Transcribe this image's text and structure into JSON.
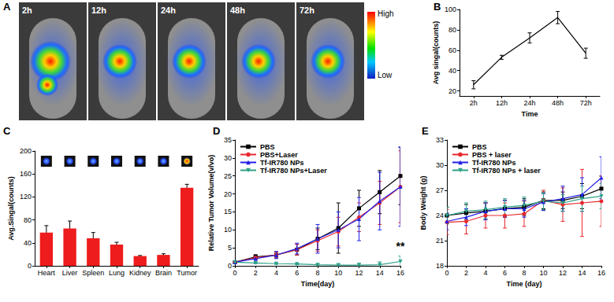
{
  "chart_data": [
    {
      "type": "image",
      "panel": "A",
      "frames": [
        "2h",
        "12h",
        "24h",
        "48h",
        "72h"
      ],
      "scale_labels": [
        "High",
        "Low"
      ]
    },
    {
      "type": "line",
      "panel": "B",
      "x_label": "Time",
      "y_label": "Avg singal(counts)",
      "categories": [
        "2h",
        "12h",
        "24h",
        "48h",
        "72h"
      ],
      "values": [
        26,
        53,
        72,
        92,
        57
      ],
      "errors": [
        4,
        2,
        5,
        6,
        5
      ],
      "color": "#000000",
      "ylim": [
        15,
        100
      ],
      "yticks": [
        20,
        40,
        60,
        80,
        100
      ]
    },
    {
      "type": "bar",
      "panel": "C",
      "y_label": "Avg.Singal(counts)",
      "categories": [
        "Heart",
        "Liver",
        "Spleen",
        "Lung",
        "Kidney",
        "Brain",
        "Tumor"
      ],
      "values": [
        58,
        65,
        48,
        37,
        17,
        19,
        136
      ],
      "errors": [
        12,
        13,
        10,
        4,
        1,
        2,
        6
      ],
      "color": "#ee1c1c",
      "ylim": [
        0,
        200
      ],
      "yticks": [
        0,
        40,
        80,
        120,
        160,
        200
      ]
    },
    {
      "type": "line",
      "panel": "D",
      "x_label": "Time(day)",
      "y_label": "Relative Tumor Volume(v/vo)",
      "x": [
        0,
        2,
        4,
        6,
        8,
        10,
        12,
        14,
        16
      ],
      "series": [
        {
          "name": "PBS",
          "color": "#000000",
          "marker": "square",
          "values": [
            1,
            2.5,
            3,
            4.5,
            7.5,
            10.5,
            16,
            20.5,
            25
          ],
          "errors": [
            0.2,
            0.6,
            0.8,
            1.5,
            3,
            7,
            5,
            6,
            8
          ]
        },
        {
          "name": "PBS+Laser",
          "color": "#e8282e",
          "marker": "circle",
          "values": [
            1,
            2.3,
            3,
            4.5,
            7,
            9.5,
            13.5,
            17.5,
            22
          ],
          "errors": [
            0.2,
            0.5,
            0.8,
            1.5,
            3,
            4,
            4,
            6,
            10
          ]
        },
        {
          "name": "Tf-IR780 NPs",
          "color": "#2020e8",
          "marker": "triangle",
          "values": [
            1,
            2,
            3,
            4.8,
            7.5,
            10,
            13,
            18,
            22
          ],
          "errors": [
            0.2,
            0.5,
            1,
            1.5,
            4,
            5,
            6,
            8,
            11
          ]
        },
        {
          "name": "Tf-IR780 NPs+Laser",
          "color": "#2ca089",
          "marker": "triangle_down",
          "values": [
            1,
            0.8,
            0.6,
            0.5,
            0.3,
            0.2,
            0.2,
            0.3,
            1.2
          ],
          "errors": [
            0.1,
            0.2,
            0.2,
            0.2,
            0.3,
            0.3,
            0.5,
            0.8,
            1.5
          ]
        }
      ],
      "xlim": [
        0,
        16
      ],
      "xticks": [
        0,
        2,
        4,
        6,
        8,
        10,
        12,
        14,
        16
      ],
      "ylim": [
        0,
        35
      ],
      "yticks": [
        0,
        5,
        10,
        15,
        20,
        25,
        30,
        35
      ],
      "legend": "upper left",
      "annotations": [
        {
          "text": "**",
          "x": 16,
          "y": 4
        }
      ]
    },
    {
      "type": "line",
      "panel": "E",
      "x_label": "Time (day)",
      "y_label": "Body Weight (g)",
      "x": [
        0,
        2,
        4,
        6,
        8,
        10,
        12,
        14,
        16
      ],
      "series": [
        {
          "name": "PBS",
          "color": "#000000",
          "marker": "square",
          "values": [
            24,
            24.3,
            24.5,
            24.8,
            25,
            25.8,
            25.8,
            26.3,
            27.2
          ],
          "errors": [
            1,
            1,
            1,
            1,
            1,
            1,
            1,
            1.5,
            1.5
          ]
        },
        {
          "name": "PBS + laser",
          "color": "#e8282e",
          "marker": "circle",
          "values": [
            23.2,
            23.3,
            24,
            24,
            24.2,
            25.8,
            25.3,
            25.5,
            25.7
          ],
          "errors": [
            1.5,
            1.5,
            1.5,
            1.5,
            1.5,
            1.2,
            2,
            4,
            3
          ]
        },
        {
          "name": "Tf-IR780 NPs",
          "color": "#2020e8",
          "marker": "triangle",
          "values": [
            23.3,
            23.8,
            24.5,
            24.8,
            24.8,
            25.6,
            26,
            26.5,
            28.5
          ],
          "errors": [
            1,
            1,
            1,
            1,
            1,
            1,
            1.5,
            2,
            2.5
          ]
        },
        {
          "name": "Tf-IR780 NPs + laser",
          "color": "#2ca089",
          "marker": "triangle_down",
          "values": [
            24,
            24.5,
            24.7,
            25,
            25.2,
            25.7,
            25.5,
            26,
            26.3
          ],
          "errors": [
            1,
            1,
            1,
            1,
            1,
            1,
            1,
            1.5,
            1.5
          ]
        }
      ],
      "xlim": [
        0,
        16
      ],
      "xticks": [
        0,
        2,
        4,
        6,
        8,
        10,
        12,
        14,
        16
      ],
      "ylim": [
        18,
        33
      ],
      "yticks": [
        18,
        21,
        24,
        27,
        30,
        33
      ],
      "legend": "upper left"
    }
  ]
}
